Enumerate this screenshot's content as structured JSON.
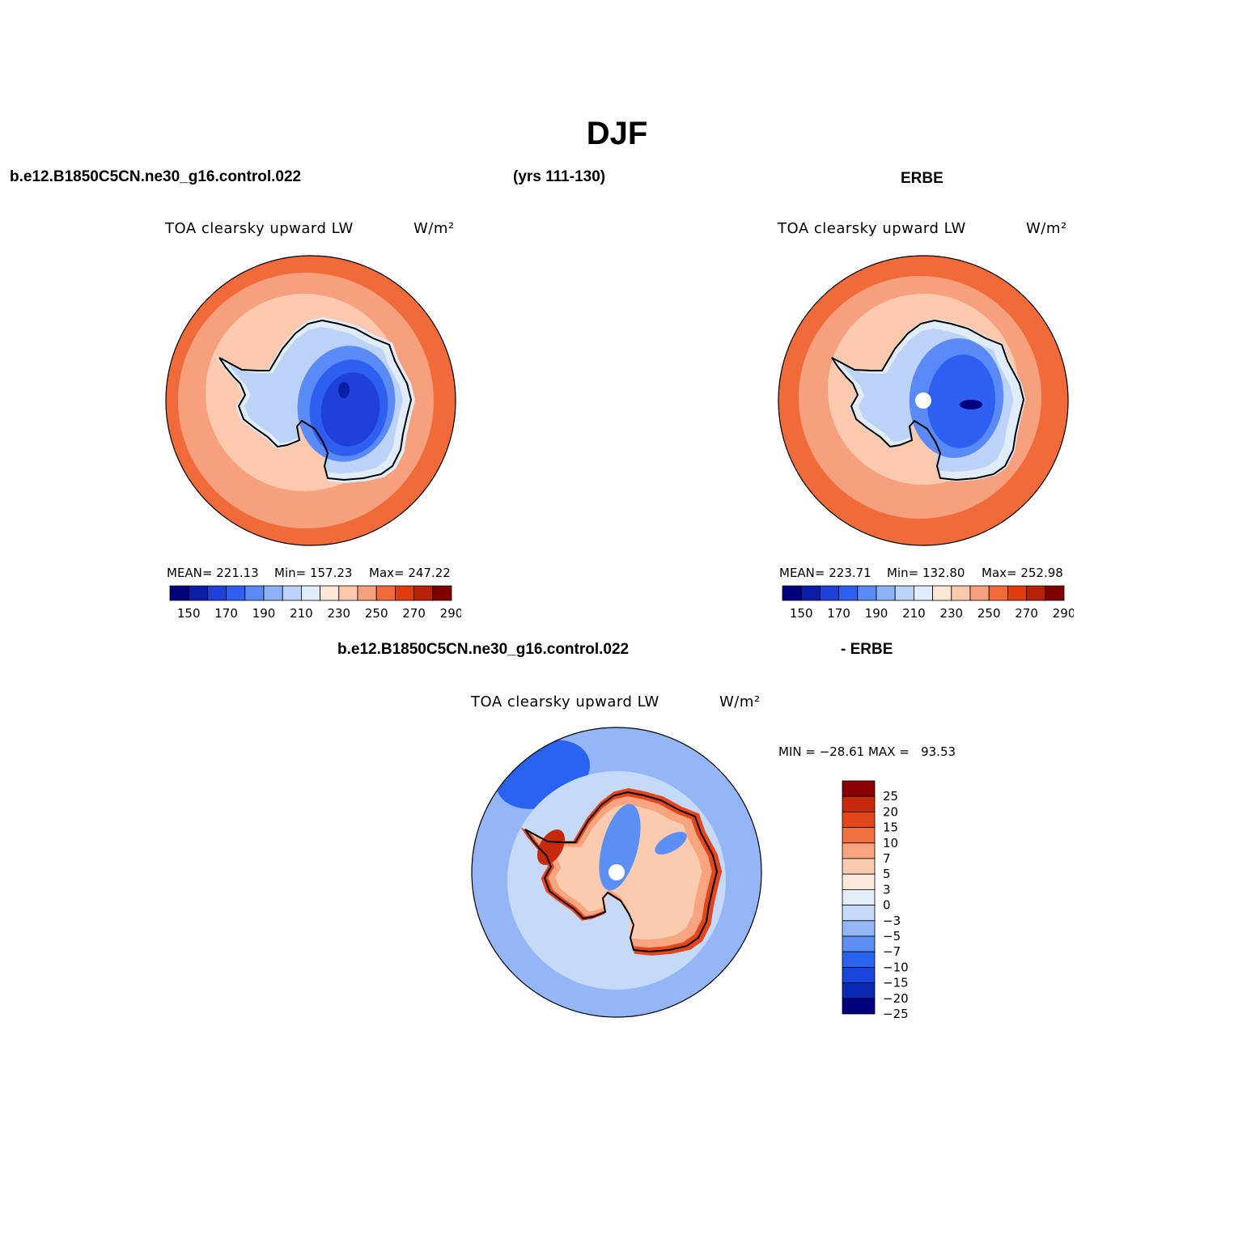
{
  "figure": {
    "title": "DJF",
    "case_name": "b.e12.B1850C5CN.ne30_g16.control.022",
    "years": "(yrs 111-130)",
    "obs_name": "ERBE",
    "diff_case_name": "b.e12.B1850C5CN.ne30_g16.control.022",
    "diff_obs_name": "- ERBE"
  },
  "colors": {
    "abs_scale": [
      "#00007f",
      "#0a1fa6",
      "#1f40d9",
      "#2f5ff0",
      "#5a8af5",
      "#8db2f7",
      "#bcd2f7",
      "#e0ecfa",
      "#fde8d8",
      "#fbc9ad",
      "#f7a07d",
      "#f06a3a",
      "#e03c10",
      "#b82208",
      "#800000"
    ],
    "diff_scale": [
      "#00007f",
      "#0a28b3",
      "#1a45dd",
      "#2a63ef",
      "#5c8ff3",
      "#94b6f6",
      "#c5d9f8",
      "#e4eefb",
      "#fde9db",
      "#fbcbb0",
      "#f7a47f",
      "#f07040",
      "#e2461c",
      "#c62a0a",
      "#8a0000"
    ],
    "continent_outline": "#000000",
    "background": "#ffffff"
  },
  "chart_data": [
    {
      "type": "heatmap",
      "id": "model",
      "projection": "south-polar-stereographic",
      "variable_label": "TOA clearsky upward LW",
      "units_label": "W/m²",
      "stats": {
        "mean": "221.13",
        "min": "157.23",
        "max": "247.22"
      },
      "stats_text": {
        "mean": "MEAN= 221.13",
        "min": "Min= 157.23",
        "max": "Max= 247.22"
      },
      "colorbar": {
        "orientation": "horizontal",
        "levels": [
          150,
          160,
          170,
          180,
          190,
          200,
          210,
          220,
          230,
          240,
          250,
          260,
          270,
          280,
          290
        ],
        "tick_labels": [
          "150",
          "170",
          "190",
          "210",
          "230",
          "250",
          "270",
          "290"
        ]
      },
      "field_summary": {
        "continent_interior_min": 157.23,
        "continent_coast": 210,
        "ocean_ring_inner": 230,
        "ocean_ring_mid": 240,
        "ocean_ring_outer": 250
      }
    },
    {
      "type": "heatmap",
      "id": "obs",
      "projection": "south-polar-stereographic",
      "variable_label": "TOA clearsky upward LW",
      "units_label": "W/m²",
      "stats": {
        "mean": "223.71",
        "min": "132.80",
        "max": "252.98"
      },
      "stats_text": {
        "mean": "MEAN= 223.71",
        "min": "Min= 132.80",
        "max": "Max= 252.98"
      },
      "colorbar": {
        "orientation": "horizontal",
        "levels": [
          150,
          160,
          170,
          180,
          190,
          200,
          210,
          220,
          230,
          240,
          250,
          260,
          270,
          280,
          290
        ],
        "tick_labels": [
          "150",
          "170",
          "190",
          "210",
          "230",
          "250",
          "270",
          "290"
        ]
      },
      "field_summary": {
        "continent_interior_min": 132.8,
        "continent_coast": 210,
        "ocean_ring_inner": 235,
        "ocean_ring_mid": 245,
        "ocean_ring_outer": 255,
        "missing_at_pole": true
      }
    },
    {
      "type": "heatmap",
      "id": "difference",
      "projection": "south-polar-stereographic",
      "variable_label": "TOA clearsky upward LW",
      "units_label": "W/m²",
      "stats_text": {
        "minmax": "MIN = −28.61 MAX =   93.53"
      },
      "stats": {
        "min": -28.61,
        "max": 93.53
      },
      "colorbar": {
        "orientation": "vertical",
        "levels": [
          -25,
          -20,
          -15,
          -10,
          -7,
          -5,
          -3,
          0,
          3,
          5,
          7,
          10,
          15,
          20,
          25
        ],
        "tick_labels": [
          "25",
          "20",
          "15",
          "10",
          "7",
          "5",
          "3",
          "0",
          "−3",
          "−5",
          "−7",
          "−10",
          "−15",
          "−20",
          "−25"
        ]
      },
      "field_summary": {
        "ocean_typical": -7,
        "continent_interior": 3,
        "coastal_ring": 10,
        "antarctic_peninsula": 15,
        "missing_at_pole": true
      }
    }
  ]
}
